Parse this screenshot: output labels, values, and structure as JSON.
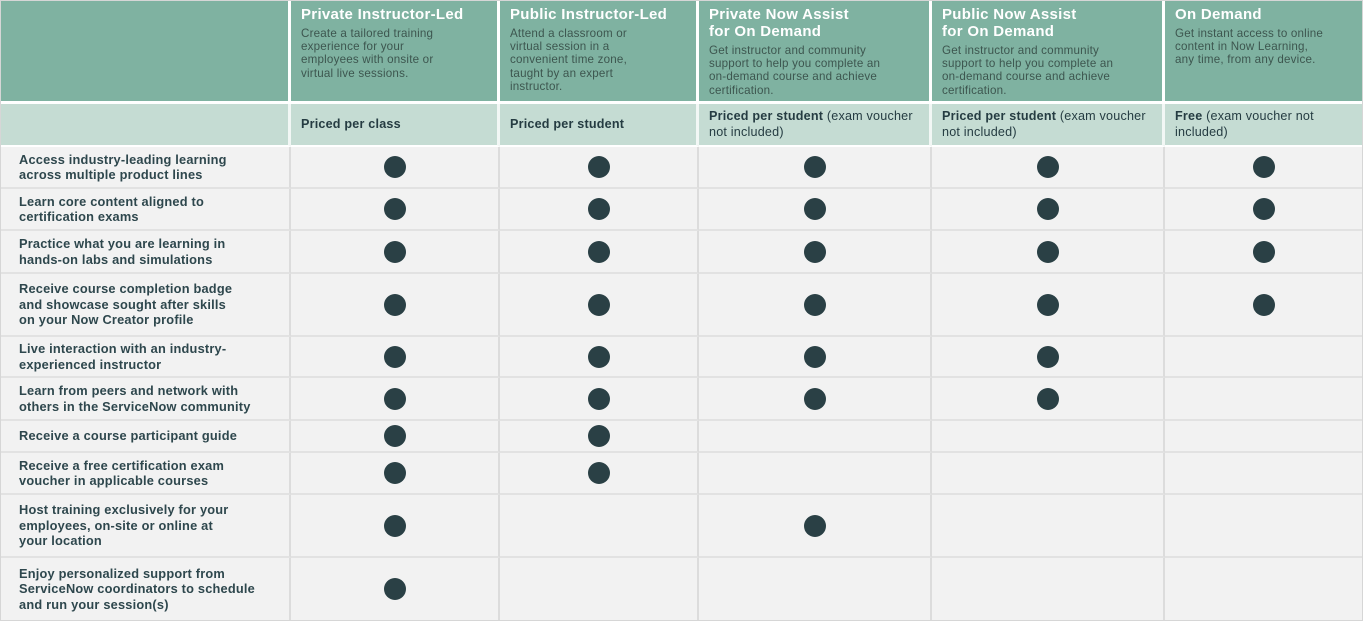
{
  "colors": {
    "header_bg": "#7fb2a1",
    "pricing_bg": "#c5dcd3",
    "body_bg": "#f2f2f2",
    "dot": "#2a4045",
    "header_title_text": "#ffffff",
    "header_desc_text": "#3d564f",
    "dark_text": "#2e474d"
  },
  "columns": [
    {
      "title": "Private Instructor-Led",
      "description": "Create a tailored training\nexperience for your\nemployees with onsite or\nvirtual live sessions.",
      "pricing": {
        "bold": "Priced per class",
        "note": ""
      }
    },
    {
      "title": "Public Instructor-Led",
      "description": "Attend a classroom or\nvirtual session in a\nconvenient time zone,\ntaught by an expert\ninstructor.",
      "pricing": {
        "bold": "Priced per student",
        "note": ""
      }
    },
    {
      "title": "Private Now Assist\nfor On Demand",
      "description": "Get instructor and community\nsupport to help you complete an\non-demand course and achieve\ncertification.",
      "pricing": {
        "bold": "Priced per student",
        "note": " (exam voucher not included)"
      }
    },
    {
      "title": "Public Now Assist\nfor On Demand",
      "description": "Get instructor and community\nsupport to help you complete an\non-demand course and achieve\ncertification.",
      "pricing": {
        "bold": "Priced per student",
        "note": " (exam voucher not included)"
      }
    },
    {
      "title": "On Demand",
      "description": "Get instant access to online\ncontent in Now Learning,\nany time, from any device.",
      "pricing": {
        "bold": "Free",
        "note": " (exam voucher\nnot included)"
      }
    }
  ],
  "rows": [
    {
      "label": "Access industry-leading learning\nacross multiple product lines",
      "dots": [
        true,
        true,
        true,
        true,
        true
      ]
    },
    {
      "label": "Learn core content aligned to\ncertification exams",
      "dots": [
        true,
        true,
        true,
        true,
        true
      ]
    },
    {
      "label": "Practice what you are learning in\nhands-on labs and simulations",
      "dots": [
        true,
        true,
        true,
        true,
        true
      ]
    },
    {
      "label": "Receive course completion badge\nand showcase sought after skills\non your Now Creator profile",
      "dots": [
        true,
        true,
        true,
        true,
        true
      ]
    },
    {
      "label": "Live interaction with an industry-\nexperienced instructor",
      "dots": [
        true,
        true,
        true,
        true,
        false
      ]
    },
    {
      "label": "Learn from peers and network with\nothers in the ServiceNow community",
      "dots": [
        true,
        true,
        true,
        true,
        false
      ]
    },
    {
      "label": "Receive a course participant guide",
      "dots": [
        true,
        true,
        false,
        false,
        false
      ]
    },
    {
      "label": "Receive a free certification exam\nvoucher in applicable courses",
      "dots": [
        true,
        true,
        false,
        false,
        false
      ]
    },
    {
      "label": "Host training exclusively for your\nemployees, on-site or online at\nyour location",
      "dots": [
        true,
        false,
        true,
        false,
        false
      ]
    },
    {
      "label": "Enjoy personalized support from\nServiceNow coordinators to schedule\nand run your session(s)",
      "dots": [
        true,
        false,
        false,
        false,
        false
      ]
    }
  ]
}
